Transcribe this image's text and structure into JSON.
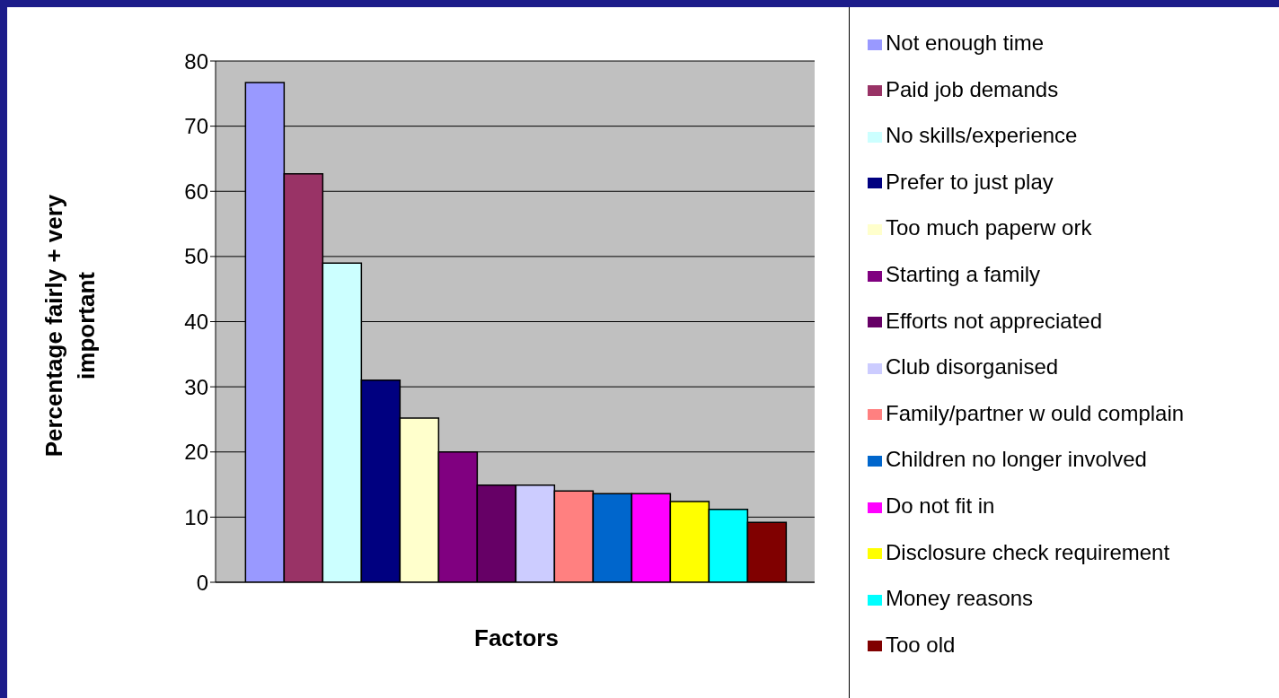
{
  "chart_data": {
    "type": "bar",
    "xlabel": "Factors",
    "ylabel": "Percentage fairly + very important",
    "categories": [
      null
    ],
    "series": [
      {
        "name": "Not enough time",
        "color": "#9999ff",
        "values": [
          76.7
        ]
      },
      {
        "name": "Paid job demands",
        "color": "#993366",
        "values": [
          62.7
        ]
      },
      {
        "name": "No skills/experience",
        "color": "#ccffff",
        "values": [
          49
        ]
      },
      {
        "name": "Prefer to just play",
        "color": "#000080",
        "values": [
          31
        ]
      },
      {
        "name": "Too much paperw ork",
        "color": "#ffffcc",
        "values": [
          25.2
        ]
      },
      {
        "name": "Starting a family",
        "color": "#800080",
        "values": [
          20
        ]
      },
      {
        "name": "Efforts not appreciated",
        "color": "#660066",
        "values": [
          14.9
        ]
      },
      {
        "name": "Club disorganised",
        "color": "#ccccff",
        "values": [
          14.9
        ]
      },
      {
        "name": "Family/partner w ould complain",
        "color": "#ff8080",
        "values": [
          14
        ]
      },
      {
        "name": "Children no longer involved",
        "color": "#0066cc",
        "values": [
          13.6
        ]
      },
      {
        "name": "Do not fit in",
        "color": "#ff00ff",
        "values": [
          13.6
        ]
      },
      {
        "name": "Disclosure check requirement",
        "color": "#ffff00",
        "values": [
          12.4
        ]
      },
      {
        "name": "Money reasons",
        "color": "#00ffff",
        "values": [
          11.2
        ]
      },
      {
        "name": "Too old",
        "color": "#800000",
        "values": [
          9.2
        ]
      }
    ],
    "ylim": [
      0,
      80
    ],
    "yticks": [
      0,
      10,
      20,
      30,
      40,
      50,
      60,
      70,
      80
    ],
    "grid": "y",
    "legend": "right",
    "tick_labels": "y"
  }
}
